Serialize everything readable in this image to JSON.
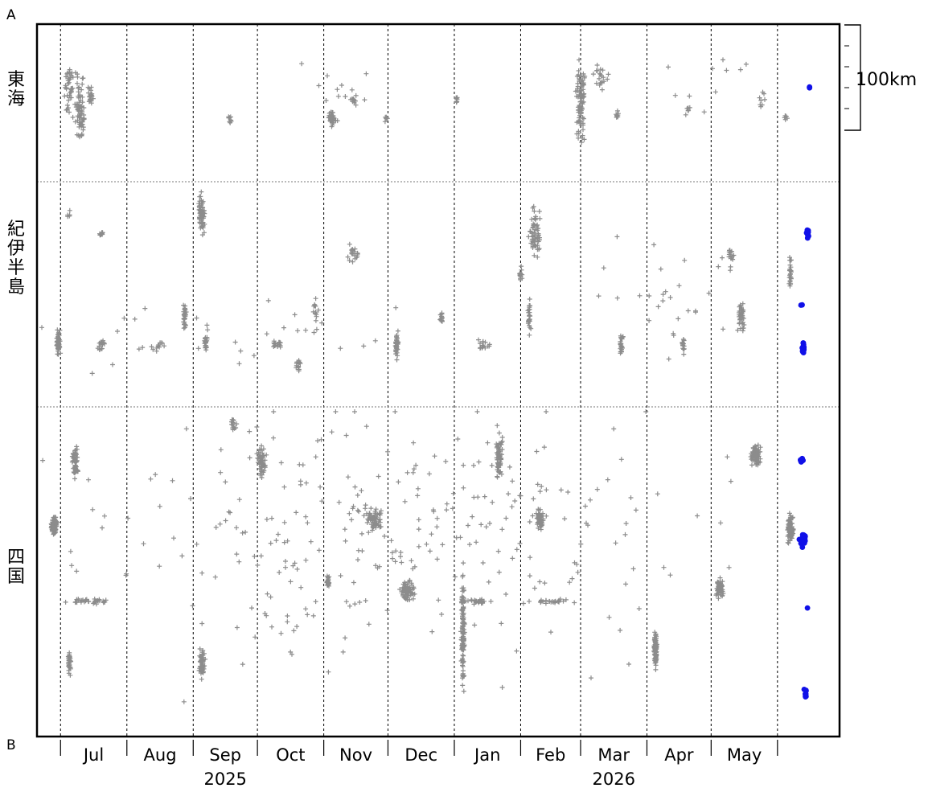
{
  "chart_data": {
    "type": "scatter",
    "title": "",
    "corner_labels": {
      "top": "A",
      "bottom": "B"
    },
    "regions": [
      {
        "id": "tokai",
        "name": "東海"
      },
      {
        "id": "kii",
        "name": "紀伊半島"
      },
      {
        "id": "shikoku",
        "name": "四国"
      }
    ],
    "months": [
      "Jul",
      "Aug",
      "Sep",
      "Oct",
      "Nov",
      "Dec",
      "Jan",
      "Feb",
      "Mar",
      "Apr",
      "May"
    ],
    "years": [
      {
        "label": "2025",
        "month": "Sep"
      },
      {
        "label": "2026",
        "month": "Mar"
      }
    ],
    "scale_label": "100km",
    "series": [
      {
        "marker": "plus",
        "color": "#8c8c8c"
      },
      {
        "marker": "dot",
        "color": "#1010e8"
      }
    ],
    "x_range": [
      "2025-06-20",
      "2026-06-30"
    ],
    "clusters": [
      {
        "series": 0,
        "region": "tokai",
        "date": "2025-07-05",
        "pos": 0.4,
        "n": 40,
        "spread_d": 3,
        "spread_p": 0.25
      },
      {
        "series": 0,
        "region": "tokai",
        "date": "2025-07-10",
        "pos": 0.55,
        "n": 70,
        "spread_d": 3,
        "spread_p": 0.3
      },
      {
        "series": 0,
        "region": "tokai",
        "date": "2025-07-15",
        "pos": 0.45,
        "n": 20,
        "spread_d": 2,
        "spread_p": 0.1
      },
      {
        "series": 0,
        "region": "tokai",
        "date": "2025-09-18",
        "pos": 0.6,
        "n": 8,
        "spread_d": 1,
        "spread_p": 0.04
      },
      {
        "series": 0,
        "region": "tokai",
        "date": "2025-11-05",
        "pos": 0.6,
        "n": 40,
        "spread_d": 3,
        "spread_p": 0.06
      },
      {
        "series": 0,
        "region": "tokai",
        "date": "2025-11-15",
        "pos": 0.48,
        "n": 10,
        "spread_d": 2,
        "spread_p": 0.08
      },
      {
        "series": 0,
        "region": "tokai",
        "date": "2025-11-30",
        "pos": 0.6,
        "n": 6,
        "spread_d": 1,
        "spread_p": 0.03
      },
      {
        "series": 0,
        "region": "tokai",
        "date": "2026-01-02",
        "pos": 0.48,
        "n": 8,
        "spread_d": 1,
        "spread_p": 0.04
      },
      {
        "series": 0,
        "region": "tokai",
        "date": "2026-03-01",
        "pos": 0.5,
        "n": 90,
        "spread_d": 3,
        "spread_p": 0.35
      },
      {
        "series": 0,
        "region": "tokai",
        "date": "2026-03-10",
        "pos": 0.35,
        "n": 20,
        "spread_d": 5,
        "spread_p": 0.12
      },
      {
        "series": 0,
        "region": "tokai",
        "date": "2026-03-18",
        "pos": 0.58,
        "n": 8,
        "spread_d": 1,
        "spread_p": 0.04
      },
      {
        "series": 0,
        "region": "tokai",
        "date": "2026-04-20",
        "pos": 0.55,
        "n": 6,
        "spread_d": 2,
        "spread_p": 0.06
      },
      {
        "series": 0,
        "region": "tokai",
        "date": "2026-05-25",
        "pos": 0.5,
        "n": 8,
        "spread_d": 3,
        "spread_p": 0.12
      },
      {
        "series": 0,
        "region": "tokai",
        "date": "2026-06-05",
        "pos": 0.6,
        "n": 5,
        "spread_d": 1,
        "spread_p": 0.04
      },
      {
        "series": 0,
        "region": "tokai",
        "date": "2025-11-10",
        "pos": 0.4,
        "n": 12,
        "spread_d": 25,
        "spread_p": 0.3
      },
      {
        "series": 0,
        "region": "tokai",
        "date": "2026-04-30",
        "pos": 0.4,
        "n": 10,
        "spread_d": 30,
        "spread_p": 0.3
      },
      {
        "series": 0,
        "region": "kii",
        "date": "2025-06-30",
        "pos": 0.71,
        "n": 50,
        "spread_d": 1,
        "spread_p": 0.07
      },
      {
        "series": 0,
        "region": "kii",
        "date": "2025-07-05",
        "pos": 0.15,
        "n": 5,
        "spread_d": 1,
        "spread_p": 0.03
      },
      {
        "series": 0,
        "region": "kii",
        "date": "2025-07-20",
        "pos": 0.73,
        "n": 15,
        "spread_d": 2,
        "spread_p": 0.04
      },
      {
        "series": 0,
        "region": "kii",
        "date": "2025-07-20",
        "pos": 0.23,
        "n": 10,
        "spread_d": 1,
        "spread_p": 0.02
      },
      {
        "series": 0,
        "region": "kii",
        "date": "2025-08-15",
        "pos": 0.73,
        "n": 12,
        "spread_d": 5,
        "spread_p": 0.04
      },
      {
        "series": 0,
        "region": "kii",
        "date": "2025-08-28",
        "pos": 0.6,
        "n": 30,
        "spread_d": 1,
        "spread_p": 0.08
      },
      {
        "series": 0,
        "region": "kii",
        "date": "2025-09-05",
        "pos": 0.15,
        "n": 60,
        "spread_d": 2,
        "spread_p": 0.12
      },
      {
        "series": 0,
        "region": "kii",
        "date": "2025-09-07",
        "pos": 0.72,
        "n": 20,
        "spread_d": 1,
        "spread_p": 0.06
      },
      {
        "series": 0,
        "region": "kii",
        "date": "2025-10-10",
        "pos": 0.72,
        "n": 15,
        "spread_d": 4,
        "spread_p": 0.03
      },
      {
        "series": 0,
        "region": "kii",
        "date": "2025-10-20",
        "pos": 0.82,
        "n": 15,
        "spread_d": 2,
        "spread_p": 0.05
      },
      {
        "series": 0,
        "region": "kii",
        "date": "2025-10-28",
        "pos": 0.58,
        "n": 12,
        "spread_d": 2,
        "spread_p": 0.08
      },
      {
        "series": 0,
        "region": "kii",
        "date": "2025-11-15",
        "pos": 0.32,
        "n": 20,
        "spread_d": 3,
        "spread_p": 0.06
      },
      {
        "series": 0,
        "region": "kii",
        "date": "2025-12-05",
        "pos": 0.72,
        "n": 45,
        "spread_d": 1,
        "spread_p": 0.08
      },
      {
        "series": 0,
        "region": "kii",
        "date": "2025-12-26",
        "pos": 0.6,
        "n": 15,
        "spread_d": 1,
        "spread_p": 0.04
      },
      {
        "series": 0,
        "region": "kii",
        "date": "2026-01-15",
        "pos": 0.72,
        "n": 15,
        "spread_d": 5,
        "spread_p": 0.03
      },
      {
        "series": 0,
        "region": "kii",
        "date": "2026-02-08",
        "pos": 0.22,
        "n": 60,
        "spread_d": 4,
        "spread_p": 0.14
      },
      {
        "series": 0,
        "region": "kii",
        "date": "2026-02-05",
        "pos": 0.6,
        "n": 30,
        "spread_d": 1,
        "spread_p": 0.1
      },
      {
        "series": 0,
        "region": "kii",
        "date": "2026-02-01",
        "pos": 0.42,
        "n": 15,
        "spread_d": 1,
        "spread_p": 0.05
      },
      {
        "series": 0,
        "region": "kii",
        "date": "2026-03-20",
        "pos": 0.73,
        "n": 25,
        "spread_d": 1,
        "spread_p": 0.07
      },
      {
        "series": 0,
        "region": "kii",
        "date": "2026-04-18",
        "pos": 0.73,
        "n": 15,
        "spread_d": 1,
        "spread_p": 0.05
      },
      {
        "series": 0,
        "region": "kii",
        "date": "2026-05-15",
        "pos": 0.6,
        "n": 40,
        "spread_d": 2,
        "spread_p": 0.1
      },
      {
        "series": 0,
        "region": "kii",
        "date": "2026-05-10",
        "pos": 0.33,
        "n": 15,
        "spread_d": 2,
        "spread_p": 0.06
      },
      {
        "series": 0,
        "region": "kii",
        "date": "2026-06-07",
        "pos": 0.4,
        "n": 25,
        "spread_d": 1,
        "spread_p": 0.12
      },
      {
        "series": 0,
        "region": "kii",
        "date": "2025-09-20",
        "pos": 0.7,
        "n": 30,
        "spread_d": 120,
        "spread_p": 0.2
      },
      {
        "series": 0,
        "region": "kii",
        "date": "2026-04-10",
        "pos": 0.5,
        "n": 30,
        "spread_d": 60,
        "spread_p": 0.4
      },
      {
        "series": 0,
        "region": "shikoku",
        "date": "2025-06-28",
        "pos": 0.36,
        "n": 90,
        "spread_d": 2,
        "spread_p": 0.04
      },
      {
        "series": 0,
        "region": "shikoku",
        "date": "2025-07-08",
        "pos": 0.17,
        "n": 60,
        "spread_d": 2,
        "spread_p": 0.06
      },
      {
        "series": 0,
        "region": "shikoku",
        "date": "2025-07-05",
        "pos": 0.78,
        "n": 30,
        "spread_d": 1,
        "spread_p": 0.06
      },
      {
        "series": 0,
        "region": "shikoku",
        "date": "2025-07-15",
        "pos": 0.59,
        "n": 35,
        "spread_d": 15,
        "spread_p": 0.01
      },
      {
        "series": 0,
        "region": "shikoku",
        "date": "2025-09-05",
        "pos": 0.78,
        "n": 60,
        "spread_d": 2,
        "spread_p": 0.07
      },
      {
        "series": 0,
        "region": "shikoku",
        "date": "2025-09-20",
        "pos": 0.05,
        "n": 15,
        "spread_d": 2,
        "spread_p": 0.03
      },
      {
        "series": 0,
        "region": "shikoku",
        "date": "2025-10-03",
        "pos": 0.17,
        "n": 60,
        "spread_d": 3,
        "spread_p": 0.06
      },
      {
        "series": 0,
        "region": "shikoku",
        "date": "2025-11-25",
        "pos": 0.34,
        "n": 60,
        "spread_d": 5,
        "spread_p": 0.04
      },
      {
        "series": 0,
        "region": "shikoku",
        "date": "2025-11-03",
        "pos": 0.53,
        "n": 25,
        "spread_d": 1,
        "spread_p": 0.03
      },
      {
        "series": 0,
        "region": "shikoku",
        "date": "2025-12-10",
        "pos": 0.56,
        "n": 70,
        "spread_d": 4,
        "spread_p": 0.04
      },
      {
        "series": 0,
        "region": "shikoku",
        "date": "2026-01-05",
        "pos": 0.68,
        "n": 120,
        "spread_d": 1,
        "spread_p": 0.22
      },
      {
        "series": 0,
        "region": "shikoku",
        "date": "2026-01-12",
        "pos": 0.59,
        "n": 25,
        "spread_d": 8,
        "spread_p": 0.01
      },
      {
        "series": 0,
        "region": "shikoku",
        "date": "2026-01-22",
        "pos": 0.15,
        "n": 60,
        "spread_d": 2,
        "spread_p": 0.09
      },
      {
        "series": 0,
        "region": "shikoku",
        "date": "2026-02-10",
        "pos": 0.34,
        "n": 50,
        "spread_d": 2,
        "spread_p": 0.04
      },
      {
        "series": 0,
        "region": "shikoku",
        "date": "2026-02-15",
        "pos": 0.59,
        "n": 25,
        "spread_d": 15,
        "spread_p": 0.01
      },
      {
        "series": 0,
        "region": "shikoku",
        "date": "2026-04-05",
        "pos": 0.74,
        "n": 80,
        "spread_d": 1,
        "spread_p": 0.08
      },
      {
        "series": 0,
        "region": "shikoku",
        "date": "2026-05-05",
        "pos": 0.55,
        "n": 60,
        "spread_d": 3,
        "spread_p": 0.04
      },
      {
        "series": 0,
        "region": "shikoku",
        "date": "2026-05-22",
        "pos": 0.15,
        "n": 70,
        "spread_d": 3,
        "spread_p": 0.05
      },
      {
        "series": 0,
        "region": "shikoku",
        "date": "2026-06-07",
        "pos": 0.37,
        "n": 80,
        "spread_d": 2,
        "spread_p": 0.06
      },
      {
        "series": 0,
        "region": "shikoku",
        "date": "2025-12-10",
        "pos": 0.4,
        "n": 300,
        "spread_d": 200,
        "spread_p": 0.55
      },
      {
        "series": 1,
        "region": "kii",
        "date": "2026-06-15",
        "pos": 0.23,
        "n": 14,
        "spread_d": 1,
        "spread_p": 0.03
      },
      {
        "series": 1,
        "region": "kii",
        "date": "2026-06-13",
        "pos": 0.74,
        "n": 18,
        "spread_d": 1,
        "spread_p": 0.05
      },
      {
        "series": 1,
        "region": "kii",
        "date": "2026-06-12",
        "pos": 0.55,
        "n": 2,
        "spread_d": 1,
        "spread_p": 0.01
      },
      {
        "series": 1,
        "region": "tokai",
        "date": "2026-06-16",
        "pos": 0.4,
        "n": 3,
        "spread_d": 0,
        "spread_p": 0.01
      },
      {
        "series": 1,
        "region": "shikoku",
        "date": "2026-06-12",
        "pos": 0.16,
        "n": 8,
        "spread_d": 1,
        "spread_p": 0.01
      },
      {
        "series": 1,
        "region": "shikoku",
        "date": "2026-06-13",
        "pos": 0.4,
        "n": 30,
        "spread_d": 2,
        "spread_p": 0.03
      },
      {
        "series": 1,
        "region": "shikoku",
        "date": "2026-06-15",
        "pos": 0.61,
        "n": 1,
        "spread_d": 0,
        "spread_p": 0.0
      },
      {
        "series": 1,
        "region": "shikoku",
        "date": "2026-06-14",
        "pos": 0.87,
        "n": 8,
        "spread_d": 1,
        "spread_p": 0.03
      }
    ]
  }
}
